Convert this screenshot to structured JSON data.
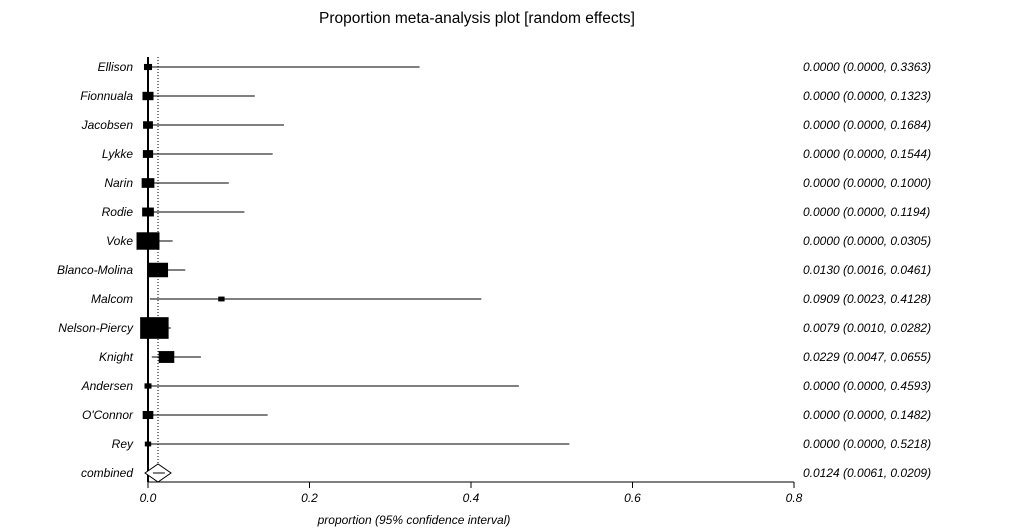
{
  "chart_data": {
    "type": "forest",
    "title": "Proportion meta-analysis plot [random effects]",
    "xlabel": "proportion (95% confidence interval)",
    "xlim": [
      0,
      0.8
    ],
    "xticks": [
      0,
      0.2,
      0.4,
      0.6,
      0.8
    ],
    "xtick_labels": [
      "0.0",
      "0.2",
      "0.4",
      "0.6",
      "0.8"
    ],
    "pooled_reference_line": 0.0124,
    "studies": [
      {
        "name": "Ellison",
        "estimate": 0.0,
        "lower": 0.0,
        "upper": 0.3363,
        "weight": 0.8,
        "label": "0.0000 (0.0000, 0.3363)"
      },
      {
        "name": "Fionnuala",
        "estimate": 0.0,
        "lower": 0.0,
        "upper": 0.1323,
        "weight": 1.5,
        "label": "0.0000 (0.0000, 0.1323)"
      },
      {
        "name": "Jacobsen",
        "estimate": 0.0,
        "lower": 0.0,
        "upper": 0.1684,
        "weight": 1.2,
        "label": "0.0000 (0.0000, 0.1684)"
      },
      {
        "name": "Lykke",
        "estimate": 0.0,
        "lower": 0.0,
        "upper": 0.1544,
        "weight": 1.3,
        "label": "0.0000 (0.0000, 0.1544)"
      },
      {
        "name": "Narin",
        "estimate": 0.0,
        "lower": 0.0,
        "upper": 0.1,
        "weight": 2.0,
        "label": "0.0000 (0.0000, 0.1000)"
      },
      {
        "name": "Rodie",
        "estimate": 0.0,
        "lower": 0.0,
        "upper": 0.1194,
        "weight": 1.7,
        "label": "0.0000 (0.0000, 0.1194)"
      },
      {
        "name": "Voke",
        "estimate": 0.0,
        "lower": 0.0,
        "upper": 0.0305,
        "weight": 6.5,
        "label": "0.0000 (0.0000, 0.0305)"
      },
      {
        "name": "Blanco-Molina",
        "estimate": 0.013,
        "lower": 0.0016,
        "upper": 0.0461,
        "weight": 4.5,
        "label": "0.0130 (0.0016, 0.0461)"
      },
      {
        "name": "Malcom",
        "estimate": 0.0909,
        "lower": 0.0023,
        "upper": 0.4128,
        "weight": 0.5,
        "label": "0.0909 (0.0023, 0.4128)"
      },
      {
        "name": "Nelson-Piercy",
        "estimate": 0.0079,
        "lower": 0.001,
        "upper": 0.0282,
        "weight": 10.0,
        "label": "0.0079 (0.0010, 0.0282)"
      },
      {
        "name": "Knight",
        "estimate": 0.0229,
        "lower": 0.0047,
        "upper": 0.0655,
        "weight": 3.0,
        "label": "0.0229 (0.0047, 0.0655)"
      },
      {
        "name": "Andersen",
        "estimate": 0.0,
        "lower": 0.0,
        "upper": 0.4593,
        "weight": 0.6,
        "label": "0.0000 (0.0000, 0.4593)"
      },
      {
        "name": "O'Connor",
        "estimate": 0.0,
        "lower": 0.0,
        "upper": 0.1482,
        "weight": 1.4,
        "label": "0.0000 (0.0000, 0.1482)"
      },
      {
        "name": "Rey",
        "estimate": 0.0,
        "lower": 0.0,
        "upper": 0.5218,
        "weight": 0.5,
        "label": "0.0000 (0.0000, 0.5218)"
      }
    ],
    "combined": {
      "name": "combined",
      "estimate": 0.0124,
      "lower": 0.0061,
      "upper": 0.0209,
      "label": "0.0124 (0.0061, 0.0209)"
    }
  }
}
